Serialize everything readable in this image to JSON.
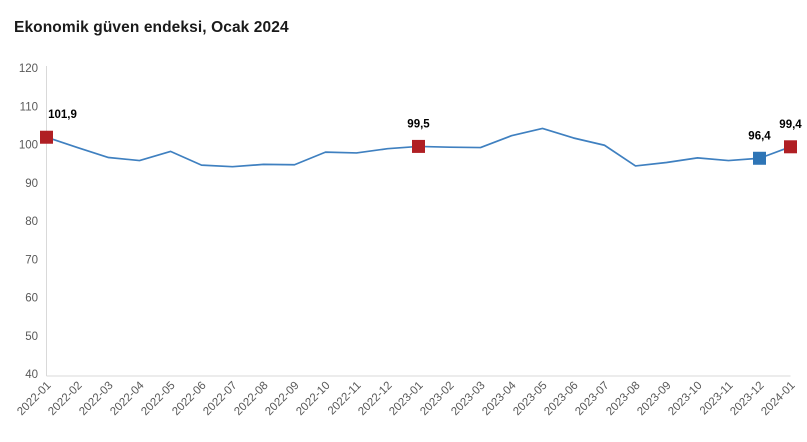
{
  "header": {
    "title": "Ekonomik güven endeksi, Ocak 2024"
  },
  "chart_data": {
    "type": "line",
    "title": "Ekonomik güven endeksi, Ocak 2024",
    "categories": [
      "2022-01",
      "2022-02",
      "2022-03",
      "2022-04",
      "2022-05",
      "2022-06",
      "2022-07",
      "2022-08",
      "2022-09",
      "2022-10",
      "2022-11",
      "2022-12",
      "2023-01",
      "2023-02",
      "2023-03",
      "2023-04",
      "2023-05",
      "2023-06",
      "2023-07",
      "2023-08",
      "2023-09",
      "2023-10",
      "2023-11",
      "2023-12",
      "2024-01"
    ],
    "values": [
      101.9,
      99.2,
      96.6,
      95.8,
      98.2,
      94.6,
      94.2,
      94.8,
      94.7,
      98.0,
      97.8,
      98.9,
      99.5,
      99.3,
      99.2,
      102.3,
      104.2,
      101.7,
      99.8,
      94.4,
      95.3,
      96.5,
      95.8,
      96.4,
      99.4
    ],
    "ylim": [
      40,
      120
    ],
    "yticks": [
      120,
      110,
      100,
      90,
      80,
      70,
      60,
      50,
      40
    ],
    "grid": false,
    "legend": false,
    "xlabel": "",
    "ylabel": "",
    "line_color": "#3f80c0",
    "axis_color": "#d9d9d9",
    "tick_label_color": "#595959",
    "annotation_text_color": "#000000",
    "annotations": [
      {
        "category": "2022-01",
        "index": 0,
        "label": "101,9",
        "value": 101.9,
        "marker_color": "#b01f24"
      },
      {
        "category": "2023-01",
        "index": 12,
        "label": "99,5",
        "value": 99.5,
        "marker_color": "#b01f24"
      },
      {
        "category": "2023-12",
        "index": 23,
        "label": "96,4",
        "value": 96.4,
        "marker_color": "#2e75b6"
      },
      {
        "category": "2024-01",
        "index": 24,
        "label": "99,4",
        "value": 99.4,
        "marker_color": "#b01f24"
      }
    ]
  }
}
